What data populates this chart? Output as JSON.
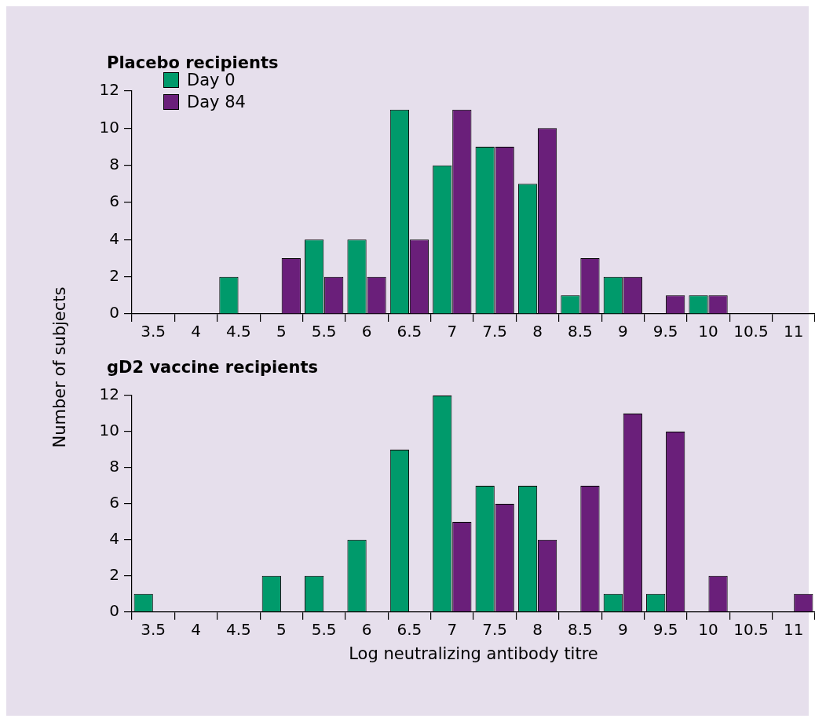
{
  "chart_data": [
    {
      "type": "bar",
      "title": "Placebo recipients",
      "ylabel": "Number of subjects",
      "categories": [
        "3.5",
        "4",
        "4.5",
        "5",
        "5.5",
        "6",
        "6.5",
        "7",
        "7.5",
        "8",
        "8.5",
        "9",
        "9.5",
        "10",
        "10.5",
        "11"
      ],
      "series": [
        {
          "name": "Day 0",
          "color": "#009a6b",
          "values": [
            0,
            0,
            2,
            0,
            4,
            4,
            11,
            8,
            9,
            7,
            1,
            2,
            0,
            1,
            0,
            0
          ]
        },
        {
          "name": "Day 84",
          "color": "#6a1f7a",
          "values": [
            0,
            0,
            0,
            3,
            2,
            2,
            4,
            11,
            9,
            10,
            3,
            2,
            1,
            1,
            0,
            0
          ]
        }
      ],
      "ylim": [
        0,
        12
      ],
      "yticks": [
        0,
        2,
        4,
        6,
        8,
        10,
        12
      ],
      "grid": false,
      "legend": "top left"
    },
    {
      "type": "bar",
      "title": "gD2 vaccine recipients",
      "xlabel": "Log neutralizing antibody titre",
      "categories": [
        "3.5",
        "4",
        "4.5",
        "5",
        "5.5",
        "6",
        "6.5",
        "7",
        "7.5",
        "8",
        "8.5",
        "9",
        "9.5",
        "10",
        "10.5",
        "11"
      ],
      "series": [
        {
          "color": "#009a6b",
          "values": [
            1,
            0,
            0,
            2,
            2,
            4,
            9,
            12,
            7,
            7,
            0,
            1,
            1,
            0,
            0,
            0
          ]
        },
        {
          "color": "#6a1f7a",
          "values": [
            0,
            0,
            0,
            0,
            0,
            0,
            0,
            5,
            6,
            4,
            7,
            11,
            10,
            2,
            0,
            1
          ]
        }
      ],
      "ylim": [
        0,
        12
      ],
      "yticks": [
        0,
        2,
        4,
        6,
        8,
        10,
        12
      ],
      "grid": false,
      "legend": false
    }
  ]
}
